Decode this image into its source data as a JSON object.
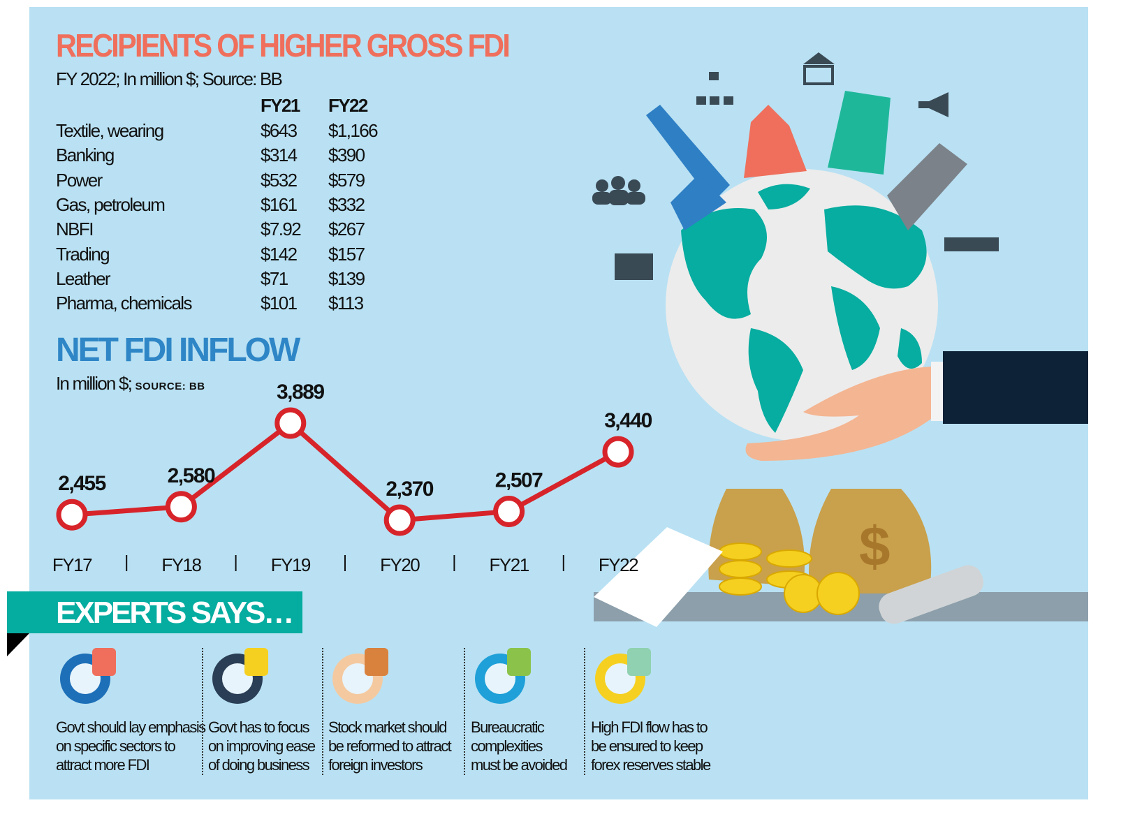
{
  "gross_fdi": {
    "title": "RECIPIENTS OF HIGHER GROSS FDI",
    "subtitle": "FY 2022; In million $; Source: BB",
    "columns": [
      "",
      "FY21",
      "FY22"
    ],
    "rows": [
      {
        "sector": "Textile, wearing",
        "fy21": "$643",
        "fy22": "$1,166"
      },
      {
        "sector": "Banking",
        "fy21": "$314",
        "fy22": "$390"
      },
      {
        "sector": "Power",
        "fy21": "$532",
        "fy22": "$579"
      },
      {
        "sector": "Gas, petroleum",
        "fy21": "$161",
        "fy22": "$332"
      },
      {
        "sector": "NBFI",
        "fy21": "$7.92",
        "fy22": "$267"
      },
      {
        "sector": "Trading",
        "fy21": "$142",
        "fy22": "$157"
      },
      {
        "sector": "Leather",
        "fy21": "$71",
        "fy22": "$139"
      },
      {
        "sector": "Pharma, chemicals",
        "fy21": "$101",
        "fy22": "$113"
      }
    ]
  },
  "chart_data": {
    "type": "line",
    "title": "NET FDI INFLOW",
    "subtitle": "In million $;",
    "source": "SOURCE: BB",
    "categories": [
      "FY17",
      "FY18",
      "FY19",
      "FY20",
      "FY21",
      "FY22"
    ],
    "values": [
      2455,
      2580,
      3889,
      2370,
      2507,
      3440
    ],
    "data_labels": [
      "2,455",
      "2,580",
      "3,889",
      "2,370",
      "2,507",
      "3,440"
    ],
    "xlabel": "",
    "ylabel": "",
    "grid": false,
    "line_color": "#d7242a",
    "marker_fill": "#ffffff"
  },
  "experts": {
    "title": "EXPERTS SAYS…",
    "items": [
      {
        "icon": "gear-pie-chart-icon",
        "lines": [
          "Govt should lay emphasis",
          "on specific sectors to",
          "attract more FDI"
        ]
      },
      {
        "icon": "hand-growth-chart-icon",
        "lines": [
          "Govt has to focus",
          "on improving ease",
          "of doing business"
        ]
      },
      {
        "icon": "investor-money-bag-icon",
        "lines": [
          "Stock market should",
          "be reformed to attract",
          "foreign investors"
        ]
      },
      {
        "icon": "document-stamp-icon",
        "lines": [
          "Bureaucratic",
          "complexities",
          "must be avoided"
        ]
      },
      {
        "icon": "coins-arrow-up-icon",
        "lines": [
          "High FDI flow has to",
          "be ensured to keep",
          "forex reserves stable"
        ]
      }
    ]
  },
  "colors": {
    "background": "#b9e1f3",
    "title_gross": "#ef6f5c",
    "title_net": "#2f86c6",
    "banner": "#05aca0",
    "globe_land": "#06ada0"
  }
}
